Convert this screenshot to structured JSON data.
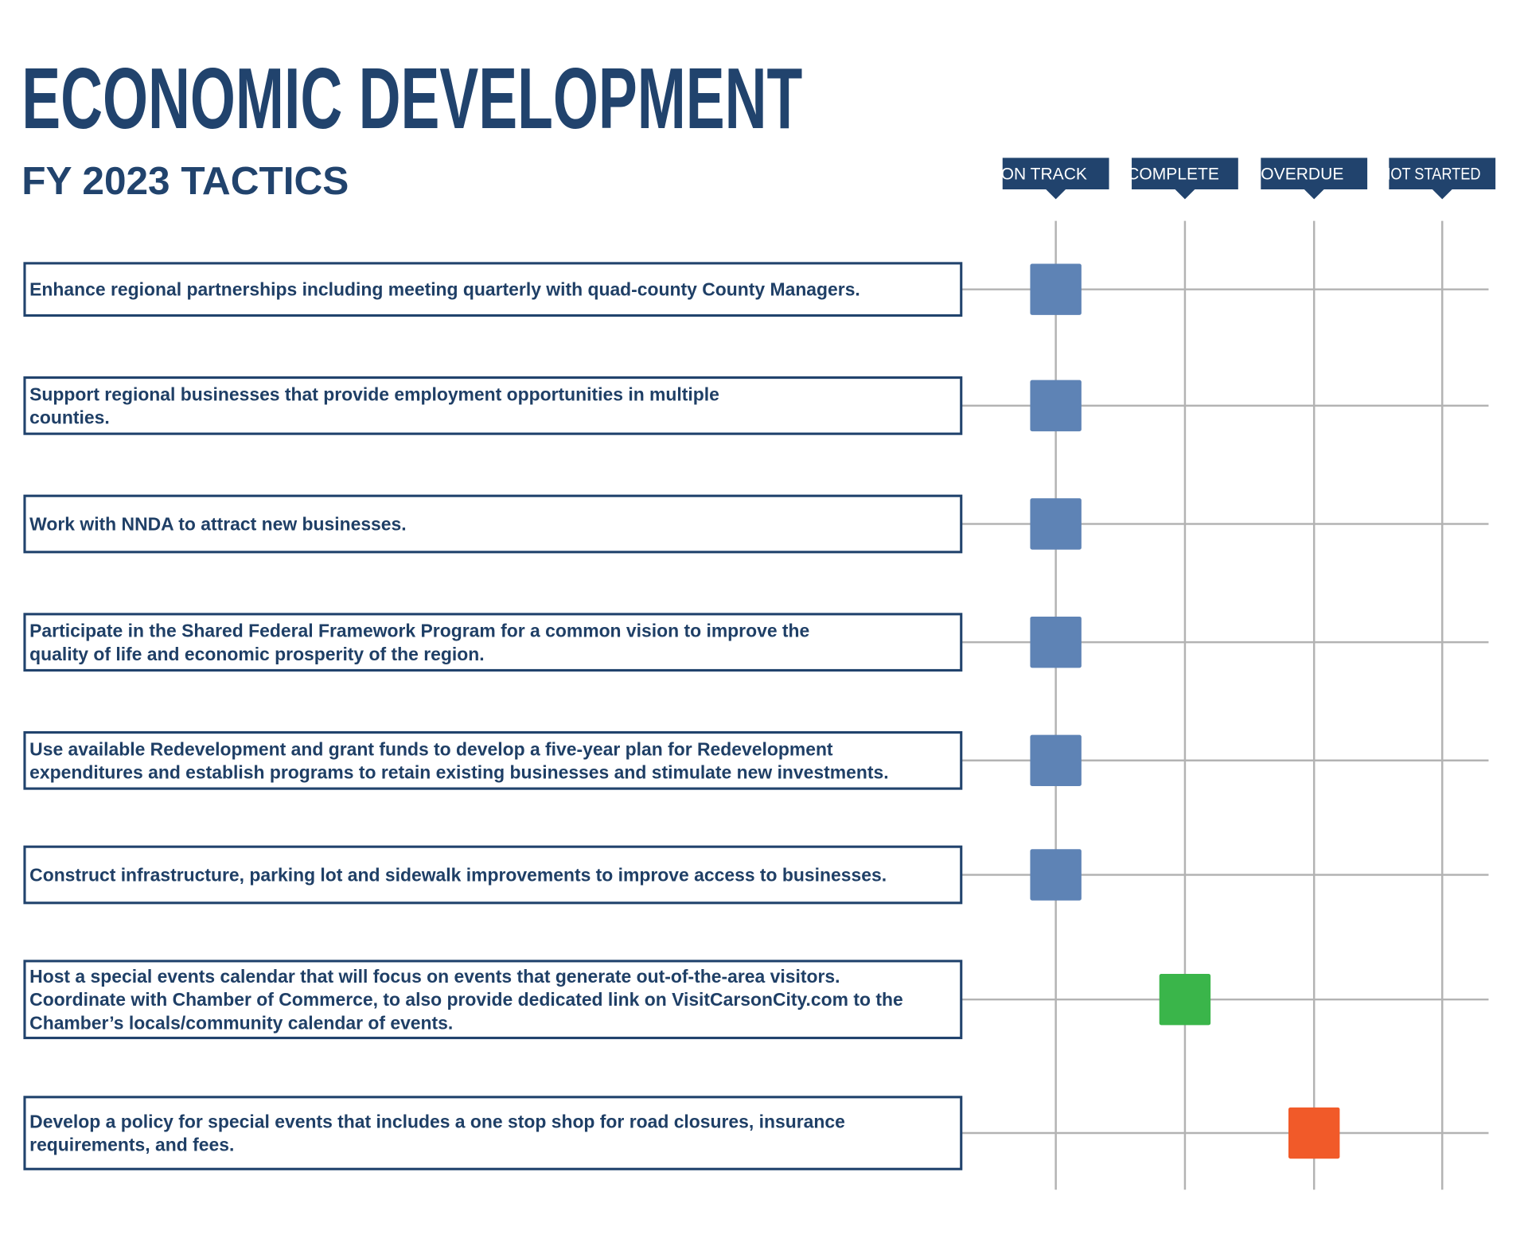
{
  "header": {
    "title": "ECONOMIC DEVELOPMENT",
    "subtitle": "FY 2023 TACTICS"
  },
  "statuses": [
    {
      "label": "ON TRACK",
      "color": "#5e83b5"
    },
    {
      "label": "COMPLETE",
      "color": "#3ab54a"
    },
    {
      "label": "OVERDUE",
      "color": "#f15a29"
    },
    {
      "label": "NOT STARTED",
      "color": "#999999"
    }
  ],
  "tactics": [
    {
      "lines": [
        "Enhance regional partnerships including meeting quarterly with quad-county County Managers."
      ],
      "status": "ON TRACK"
    },
    {
      "lines": [
        "Support regional businesses that provide employment opportunities in multiple",
        "counties."
      ],
      "status": "ON TRACK"
    },
    {
      "lines": [
        "Work with NNDA to attract new businesses."
      ],
      "status": "ON TRACK"
    },
    {
      "lines": [
        "Participate in the Shared Federal Framework Program for a common vision to improve the",
        "quality of life and economic prosperity of the region."
      ],
      "status": "ON TRACK"
    },
    {
      "lines": [
        "Use available Redevelopment and grant funds to develop a five-year plan for Redevelopment",
        "expenditures and establish programs to retain existing businesses and stimulate new investments."
      ],
      "status": "ON TRACK"
    },
    {
      "lines": [
        "Construct infrastructure, parking lot and sidewalk improvements to improve access to businesses."
      ],
      "status": "ON TRACK"
    },
    {
      "lines": [
        "Host a special events calendar that will focus on events that generate out-of-the-area visitors.",
        "Coordinate with Chamber of Commerce, to also provide dedicated link on VisitCarsonCity.com to the",
        "Chamber’s locals/community calendar of events."
      ],
      "status": "COMPLETE"
    },
    {
      "lines": [
        "Develop a policy for special events that includes a one stop shop for road closures, insurance",
        "requirements, and fees."
      ],
      "status": "OVERDUE"
    }
  ]
}
